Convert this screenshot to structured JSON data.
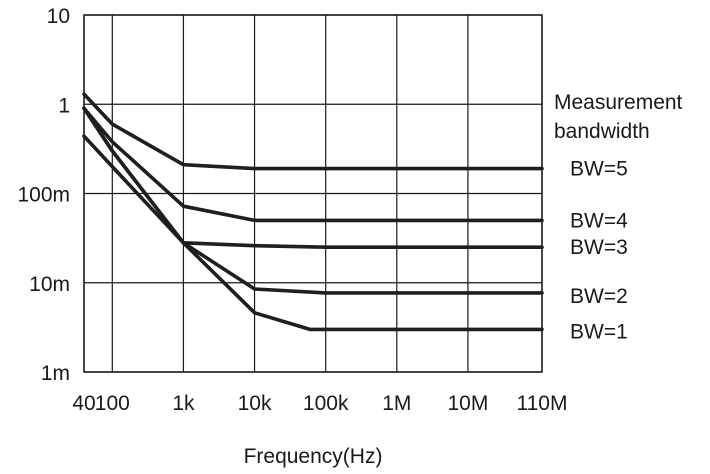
{
  "chart_data": {
    "type": "line",
    "title": "",
    "xlabel": "Frequency(Hz)",
    "ylabel": "",
    "x_scale": "log",
    "y_scale": "log",
    "xlim": [
      40,
      110000000
    ],
    "ylim": [
      0.001,
      10
    ],
    "grid": true,
    "x_ticks": [
      {
        "value": 40,
        "label": "40"
      },
      {
        "value": 100,
        "label": "100"
      },
      {
        "value": 1000,
        "label": "1k"
      },
      {
        "value": 10000,
        "label": "10k"
      },
      {
        "value": 100000,
        "label": "100k"
      },
      {
        "value": 1000000,
        "label": "1M"
      },
      {
        "value": 10000000,
        "label": "10M"
      },
      {
        "value": 110000000,
        "label": "110M"
      }
    ],
    "y_ticks": [
      {
        "value": 10,
        "label": "10"
      },
      {
        "value": 1,
        "label": "1"
      },
      {
        "value": 0.1,
        "label": "100m"
      },
      {
        "value": 0.01,
        "label": "10m"
      },
      {
        "value": 0.001,
        "label": "1m"
      }
    ],
    "legend_title": [
      "Measurement",
      "bandwidth"
    ],
    "series": [
      {
        "name": "BW=5",
        "points": [
          [
            40,
            1.3
          ],
          [
            100,
            0.6
          ],
          [
            1000,
            0.21
          ],
          [
            10000,
            0.19
          ],
          [
            110000000,
            0.19
          ]
        ]
      },
      {
        "name": "BW=4",
        "points": [
          [
            40,
            0.9
          ],
          [
            100,
            0.38
          ],
          [
            1000,
            0.072
          ],
          [
            10000,
            0.05
          ],
          [
            110000000,
            0.05
          ]
        ]
      },
      {
        "name": "BW=3",
        "points": [
          [
            40,
            0.44
          ],
          [
            100,
            0.2
          ],
          [
            1000,
            0.028
          ],
          [
            10000,
            0.026
          ],
          [
            100000,
            0.025
          ],
          [
            110000000,
            0.025
          ]
        ]
      },
      {
        "name": "BW=2",
        "points": [
          [
            40,
            0.9
          ],
          [
            100,
            0.3
          ],
          [
            1000,
            0.028
          ],
          [
            10000,
            0.0085
          ],
          [
            100000,
            0.0077
          ],
          [
            110000000,
            0.0077
          ]
        ]
      },
      {
        "name": "BW=1",
        "points": [
          [
            40,
            0.9
          ],
          [
            100,
            0.3
          ],
          [
            1000,
            0.028
          ],
          [
            10000,
            0.0046
          ],
          [
            60000,
            0.003
          ],
          [
            110000000,
            0.003
          ]
        ]
      }
    ]
  }
}
